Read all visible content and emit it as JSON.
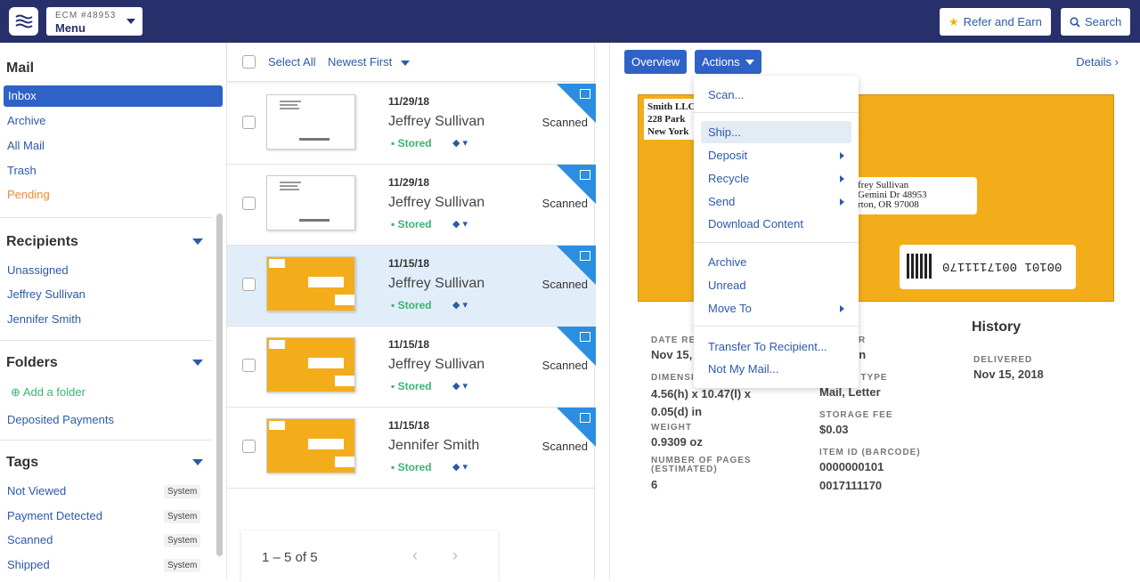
{
  "topbar": {
    "account_label": "ECM #48953",
    "menu_label": "Menu",
    "refer_label": "Refer and Earn",
    "search_label": "Search"
  },
  "sidebar": {
    "mail_title": "Mail",
    "mail_items": [
      "Inbox",
      "Archive",
      "All Mail",
      "Trash",
      "Pending"
    ],
    "recipients_title": "Recipients",
    "recipients": [
      "Unassigned",
      "Jeffrey Sullivan",
      "Jennifer Smith"
    ],
    "folders_title": "Folders",
    "add_folder_label": "Add a folder",
    "folders": [
      "Deposited Payments"
    ],
    "tags_title": "Tags",
    "tags": [
      {
        "label": "Not Viewed",
        "badge": "System"
      },
      {
        "label": "Payment Detected",
        "badge": "System"
      },
      {
        "label": "Scanned",
        "badge": "System"
      },
      {
        "label": "Shipped",
        "badge": "System"
      }
    ]
  },
  "list": {
    "select_all_label": "Select All",
    "sort_label": "Newest First",
    "rows": [
      {
        "date": "11/29/18",
        "name": "Jeffrey Sullivan",
        "status": "Stored",
        "scan": "Scanned"
      },
      {
        "date": "11/29/18",
        "name": "Jeffrey Sullivan",
        "status": "Stored",
        "scan": "Scanned"
      },
      {
        "date": "11/15/18",
        "name": "Jeffrey Sullivan",
        "status": "Stored",
        "scan": "Scanned"
      },
      {
        "date": "11/15/18",
        "name": "Jeffrey Sullivan",
        "status": "Stored",
        "scan": "Scanned"
      },
      {
        "date": "11/15/18",
        "name": "Jennifer Smith",
        "status": "Stored",
        "scan": "Scanned"
      }
    ],
    "pager_text": "1 – 5 of 5"
  },
  "detail": {
    "overview_label": "Overview",
    "actions_label": "Actions",
    "details_label": "Details",
    "envelope": {
      "sender_lines": [
        "Smith LLC",
        "228 Park",
        "New York"
      ],
      "recipient_lines": [
        "frey Sullivan",
        "Gemini Dr 48953",
        "rton, OR 97008"
      ],
      "barcode_text": "00101 0017111170"
    },
    "fields": {
      "date_received_label": "DATE RE",
      "date_received_value": "Nov 15,",
      "sender_label": "R",
      "sender_value": "vn",
      "dimensions_label": "DIMENSI",
      "dimensions_value": "4.56(h) x 10.47(l) x 0.05(d) in",
      "mail_type_label": "E TYPE",
      "mail_type_value": "Mail, Letter",
      "weight_label": "WEIGHT",
      "weight_value": "0.9309 oz",
      "storage_fee_label": "STORAGE FEE",
      "storage_fee_value": "$0.03",
      "pages_label": "NUMBER OF PAGES (ESTIMATED)",
      "pages_value": "6",
      "item_id_label": "ITEM ID (BARCODE)",
      "item_id_value_1": "0000000101",
      "item_id_value_2": "0017111170"
    },
    "history": {
      "title": "History",
      "event_label": "DELIVERED",
      "event_date": "Nov 15, 2018"
    }
  },
  "actions_menu": {
    "group1": [
      "Scan...",
      "Ship...",
      "Deposit",
      "Recycle",
      "Send",
      "Download Content"
    ],
    "group2": [
      "Archive",
      "Unread",
      "Move To"
    ],
    "group3": [
      "Transfer To Recipient...",
      "Not My Mail..."
    ]
  },
  "colors": {
    "topbar": "#27306b",
    "accent": "#2f62c7",
    "link": "#2c5aa8",
    "stored": "#3cb371",
    "pending": "#ef8b2c",
    "envelope": "#f4ad1a"
  }
}
